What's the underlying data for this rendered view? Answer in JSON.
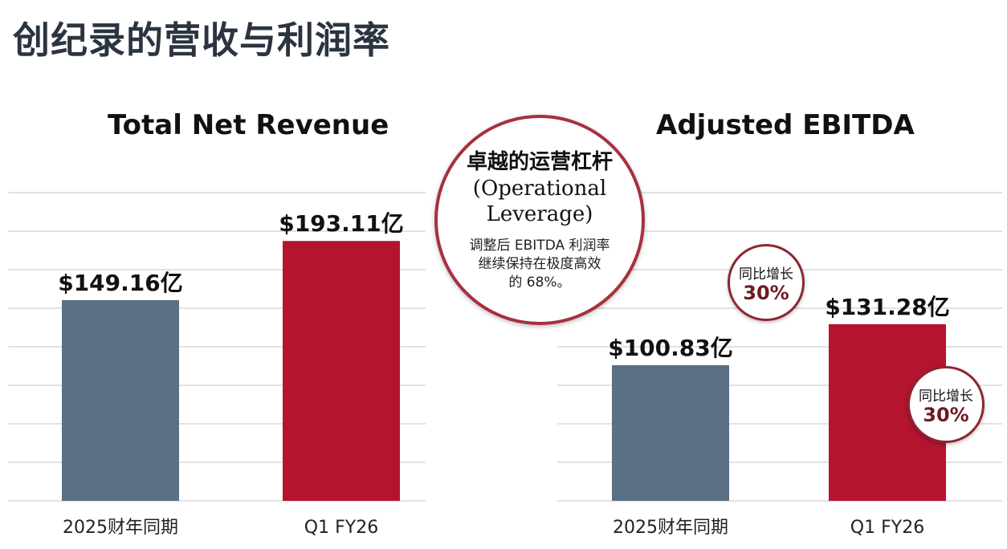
{
  "page": {
    "title": "创纪录的营收与利润率",
    "colors": {
      "prior": "#5a7085",
      "current": "#b5142f",
      "grid": "#d8d8d8"
    }
  },
  "chart_data": [
    {
      "type": "bar",
      "title": "Total Net Revenue",
      "categories": [
        "2025财年同期",
        "Q1 FY26"
      ],
      "values": [
        149.16,
        193.11
      ],
      "value_labels": [
        "$149.16亿",
        "$193.11亿"
      ],
      "ylim": [
        0,
        235
      ],
      "grid": true,
      "xlabel": "",
      "ylabel": ""
    },
    {
      "type": "bar",
      "title": "Adjusted EBITDA",
      "categories": [
        "2025财年同期",
        "Q1 FY26"
      ],
      "values": [
        100.83,
        131.28
      ],
      "value_labels": [
        "$100.83亿",
        "$131.28亿"
      ],
      "ylim": [
        0,
        235
      ],
      "grid": true,
      "xlabel": "",
      "ylabel": ""
    }
  ],
  "callout": {
    "heading": "卓越的运营杠杆",
    "english_line1": "(Operational",
    "english_line2": "Leverage)",
    "body_line1": "调整后 EBITDA 利润率",
    "body_line2": "继续保持在极度高效",
    "body_line3": "的 68%。"
  },
  "badges": [
    {
      "label": "同比增长",
      "value": "30%"
    },
    {
      "label": "同比增长",
      "value": "30%"
    }
  ]
}
